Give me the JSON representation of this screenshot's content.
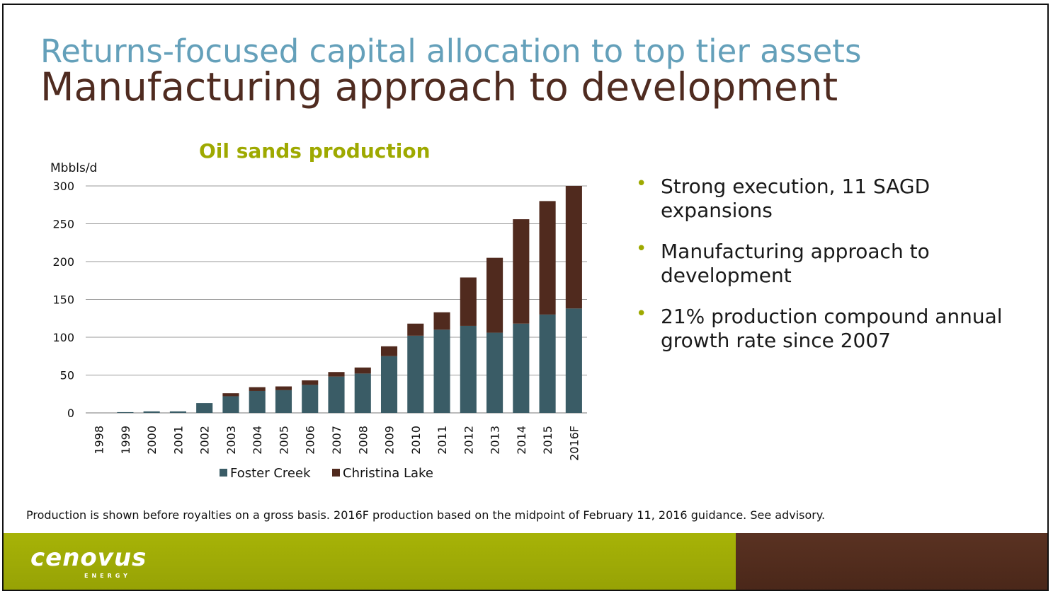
{
  "slide": {
    "subtitle": "Returns-focused capital allocation to top tier assets",
    "title": "Manufacturing approach to development",
    "bullets": [
      "Strong execution, 11 SAGD expansions",
      "Manufacturing approach to development",
      "21% production compound annual growth rate since 2007"
    ],
    "footnote": "Production is shown before royalties on a gross basis. 2016F production based on the midpoint of February 11, 2016 guidance. See advisory.",
    "logo": "cenovus",
    "logo_sub": "ENERGY",
    "colors": {
      "subtitle": "#64a0ba",
      "title": "#4f2b20",
      "accent_green": "#9ea900",
      "footer_brown": "#4f2b1d"
    }
  },
  "chart_data": {
    "type": "bar",
    "stacked": true,
    "title": "Oil sands production",
    "ylabel": "Mbbls/d",
    "xlabel": "",
    "ylim": [
      0,
      300
    ],
    "yticks": [
      0,
      50,
      100,
      150,
      200,
      250,
      300
    ],
    "grid": true,
    "legend_position": "bottom",
    "categories": [
      "1998",
      "1999",
      "2000",
      "2001",
      "2002",
      "2003",
      "2004",
      "2005",
      "2006",
      "2007",
      "2008",
      "2009",
      "2010",
      "2011",
      "2012",
      "2013",
      "2014",
      "2015",
      "2016F"
    ],
    "series": [
      {
        "name": "Foster Creek",
        "color": "#3a5c66",
        "values": [
          0,
          1,
          2,
          2,
          13,
          22,
          29,
          30,
          37,
          48,
          52,
          75,
          102,
          110,
          115,
          106,
          118,
          130,
          138
        ]
      },
      {
        "name": "Christina Lake",
        "color": "#502a1e",
        "values": [
          0,
          0,
          0,
          0,
          0,
          4,
          5,
          5,
          6,
          6,
          8,
          13,
          16,
          23,
          64,
          99,
          138,
          150,
          162
        ]
      }
    ]
  }
}
